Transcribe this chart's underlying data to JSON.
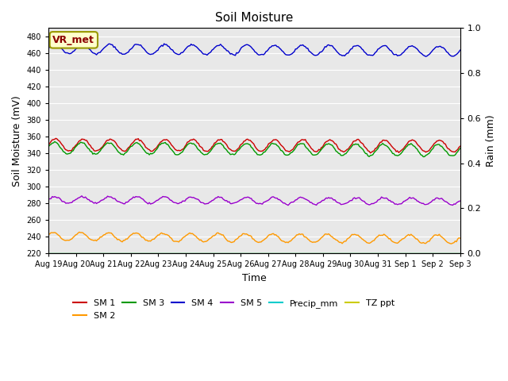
{
  "title": "Soil Moisture",
  "xlabel": "Time",
  "ylabel_left": "Soil Moisture (mV)",
  "ylabel_right": "Rain (mm)",
  "ylim_left": [
    220,
    490
  ],
  "ylim_right": [
    0.0,
    1.0
  ],
  "yticks_left": [
    220,
    240,
    260,
    280,
    300,
    320,
    340,
    360,
    380,
    400,
    420,
    440,
    460,
    480
  ],
  "yticks_right": [
    0.0,
    0.2,
    0.4,
    0.6,
    0.8,
    1.0
  ],
  "num_points": 336,
  "bg_color": "#e8e8e8",
  "fig_color": "#ffffff",
  "lines": {
    "SM1": {
      "color": "#cc0000",
      "base": 350,
      "amplitude": 7,
      "trend": -0.005,
      "phase": 0.0
    },
    "SM2": {
      "color": "#ff9900",
      "base": 240,
      "amplitude": 5,
      "trend": -0.01,
      "phase": 0.5
    },
    "SM3": {
      "color": "#009900",
      "base": 346,
      "amplitude": 7,
      "trend": -0.008,
      "phase": 0.3
    },
    "SM4": {
      "color": "#0000cc",
      "base": 465,
      "amplitude": 6,
      "trend": -0.008,
      "phase": 0.1
    },
    "SM5": {
      "color": "#9900cc",
      "base": 284,
      "amplitude": 4,
      "trend": -0.006,
      "phase": 0.2
    },
    "Precip_mm": {
      "color": "#00cccc"
    },
    "TZ_ppt": {
      "color": "#cccc00"
    }
  },
  "legend_entries": [
    {
      "label": "SM 1",
      "color": "#cc0000"
    },
    {
      "label": "SM 2",
      "color": "#ff9900"
    },
    {
      "label": "SM 3",
      "color": "#009900"
    },
    {
      "label": "SM 4",
      "color": "#0000cc"
    },
    {
      "label": "SM 5",
      "color": "#9900cc"
    },
    {
      "label": "Precip_mm",
      "color": "#00cccc"
    },
    {
      "label": "TZ ppt",
      "color": "#cccc00"
    }
  ],
  "annotation": {
    "text": "VR_met",
    "fontsize": 9,
    "color": "#8b0000",
    "bg": "#ffffcc",
    "border": "#999900"
  },
  "xtick_labels": [
    "Aug 19",
    "Aug 20",
    "Aug 21",
    "Aug 22",
    "Aug 23",
    "Aug 24",
    "Aug 25",
    "Aug 26",
    "Aug 27",
    "Aug 28",
    "Aug 29",
    "Aug 30",
    "Aug 31",
    "Sep 1",
    "Sep 2",
    "Sep 3"
  ]
}
